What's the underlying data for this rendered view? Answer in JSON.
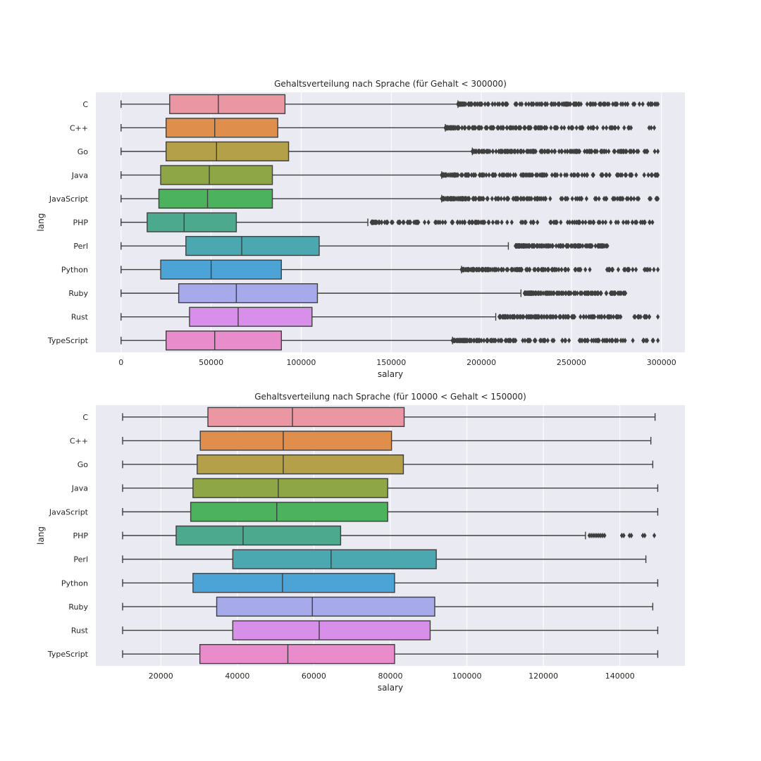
{
  "chart_data": [
    {
      "type": "box",
      "orientation": "horizontal",
      "title": "Gehaltsverteilung nach Sprache (für Gehalt < 300000)",
      "xlabel": "salary",
      "ylabel": "lang",
      "xlim": [
        -14000,
        313000
      ],
      "xticks": [
        0,
        50000,
        100000,
        150000,
        200000,
        250000,
        300000
      ],
      "grid": true,
      "categories": [
        "C",
        "C++",
        "Go",
        "Java",
        "JavaScript",
        "PHP",
        "Perl",
        "Python",
        "Ruby",
        "Rust",
        "TypeScript"
      ],
      "colors": [
        "#ea96a3",
        "#df8e4c",
        "#b3a049",
        "#8ea645",
        "#4cb25e",
        "#4ca98e",
        "#4ca8b0",
        "#4ca4d6",
        "#a6a9ea",
        "#d78fe9",
        "#e88ccb"
      ],
      "boxes": [
        {
          "min": 0,
          "q1": 27000,
          "median": 54000,
          "q3": 91000,
          "max": 187000,
          "outliers": {
            "from": 187000,
            "to": 298000
          }
        },
        {
          "min": 0,
          "q1": 25000,
          "median": 52000,
          "q3": 87000,
          "max": 180000,
          "outliers": {
            "from": 180000,
            "to": 296000
          }
        },
        {
          "min": 0,
          "q1": 25000,
          "median": 53000,
          "q3": 93000,
          "max": 195000,
          "outliers": {
            "from": 195000,
            "to": 298000
          }
        },
        {
          "min": 0,
          "q1": 22000,
          "median": 49000,
          "q3": 84000,
          "max": 178000,
          "outliers": {
            "from": 178000,
            "to": 298000
          }
        },
        {
          "min": 0,
          "q1": 21000,
          "median": 48000,
          "q3": 84000,
          "max": 178000,
          "outliers": {
            "from": 178000,
            "to": 298000
          }
        },
        {
          "min": 0,
          "q1": 14500,
          "median": 35000,
          "q3": 64000,
          "max": 137000,
          "outliers": {
            "from": 139000,
            "to": 295000
          }
        },
        {
          "min": 0,
          "q1": 36000,
          "median": 67000,
          "q3": 110000,
          "max": 215000,
          "outliers": {
            "from": 219000,
            "to": 270000
          }
        },
        {
          "min": 0,
          "q1": 22000,
          "median": 50000,
          "q3": 89000,
          "max": 189000,
          "outliers": {
            "from": 189000,
            "to": 298000
          }
        },
        {
          "min": 0,
          "q1": 32000,
          "median": 64000,
          "q3": 109000,
          "max": 222000,
          "outliers": {
            "from": 224000,
            "to": 280000
          }
        },
        {
          "min": 0,
          "q1": 38000,
          "median": 65000,
          "q3": 106000,
          "max": 208000,
          "outliers": {
            "from": 210000,
            "to": 298000
          }
        },
        {
          "min": 0,
          "q1": 25000,
          "median": 52000,
          "q3": 89000,
          "max": 184000,
          "outliers": {
            "from": 184000,
            "to": 298000
          }
        }
      ]
    },
    {
      "type": "box",
      "orientation": "horizontal",
      "title": "Gehaltsverteilung nach Sprache (für 10000 < Gehalt < 150000)",
      "xlabel": "salary",
      "ylabel": "lang",
      "xlim": [
        3000,
        157000
      ],
      "xticks": [
        20000,
        40000,
        60000,
        80000,
        100000,
        120000,
        140000
      ],
      "grid": true,
      "categories": [
        "C",
        "C++",
        "Go",
        "Java",
        "JavaScript",
        "PHP",
        "Perl",
        "Python",
        "Ruby",
        "Rust",
        "TypeScript"
      ],
      "colors": [
        "#ea96a3",
        "#df8e4c",
        "#b3a049",
        "#8ea645",
        "#4cb25e",
        "#4ca98e",
        "#4ca8b0",
        "#4ca4d6",
        "#a6a9ea",
        "#d78fe9",
        "#e88ccb"
      ],
      "boxes": [
        {
          "min": 10000,
          "q1": 32300,
          "median": 54400,
          "q3": 83600,
          "max": 149200
        },
        {
          "min": 10000,
          "q1": 30300,
          "median": 52000,
          "q3": 80300,
          "max": 148100
        },
        {
          "min": 10000,
          "q1": 29500,
          "median": 52000,
          "q3": 83400,
          "max": 148600
        },
        {
          "min": 10000,
          "q1": 28400,
          "median": 50700,
          "q3": 79300,
          "max": 149900
        },
        {
          "min": 10000,
          "q1": 27800,
          "median": 50300,
          "q3": 79300,
          "max": 149900
        },
        {
          "min": 10000,
          "q1": 24000,
          "median": 41500,
          "q3": 67000,
          "max": 131000,
          "outliers": [
            132000,
            132500,
            133000,
            133500,
            134000,
            134500,
            135000,
            135500,
            136000,
            140500,
            141000,
            142500,
            143000,
            146000,
            146500,
            149000
          ]
        },
        {
          "min": 10000,
          "q1": 38800,
          "median": 64500,
          "q3": 92000,
          "max": 146800
        },
        {
          "min": 10000,
          "q1": 28400,
          "median": 51800,
          "q3": 81100,
          "max": 149900
        },
        {
          "min": 10000,
          "q1": 34600,
          "median": 59600,
          "q3": 91600,
          "max": 148600
        },
        {
          "min": 10000,
          "q1": 38800,
          "median": 61400,
          "q3": 90400,
          "max": 149900
        },
        {
          "min": 10000,
          "q1": 30200,
          "median": 53200,
          "q3": 81100,
          "max": 149900
        }
      ]
    }
  ]
}
